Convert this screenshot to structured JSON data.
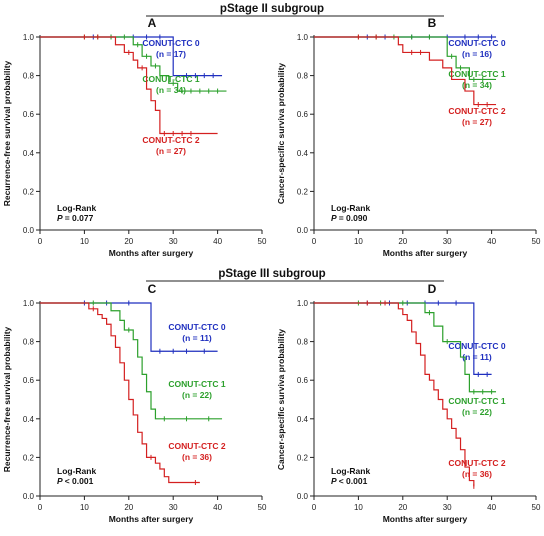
{
  "groups": [
    {
      "title": "pStage II subgroup"
    },
    {
      "title": "pStage III subgroup"
    }
  ],
  "colors": {
    "CONUT-CTC 0": "#1f2fbf",
    "CONUT-CTC 1": "#2ca02c",
    "CONUT-CTC 2": "#d42020",
    "axis": "#222222"
  },
  "chart_data": [
    {
      "panel": "A",
      "type": "line",
      "step": true,
      "xlabel": "Months after surgery",
      "ylabel": "Recurrence-free survival probability",
      "xlim": [
        0,
        50
      ],
      "ylim": [
        0,
        1.0
      ],
      "xticks": [
        "0",
        "10",
        "20",
        "30",
        "40",
        "50"
      ],
      "yticks": [
        "0.0",
        "0.2",
        "0.4",
        "0.6",
        "0.8",
        "1.0"
      ],
      "stat": {
        "label": "Log-Rank",
        "p_label": "P",
        "p_value": "= 0.077"
      },
      "series": [
        {
          "name": "CONUT-CTC 0",
          "n": "(n = 17)",
          "x": [
            0,
            30,
            41
          ],
          "y": [
            1.0,
            0.8,
            0.8
          ],
          "censor": [
            [
              12,
              1.0
            ],
            [
              16,
              1.0
            ],
            [
              21,
              1.0
            ],
            [
              24,
              1.0
            ],
            [
              27,
              1.0
            ],
            [
              33,
              0.8
            ],
            [
              35,
              0.8
            ],
            [
              37,
              0.8
            ],
            [
              39,
              0.8
            ]
          ]
        },
        {
          "name": "CONUT-CTC 1",
          "n": "(n = 34)",
          "x": [
            0,
            21,
            23,
            25,
            27,
            29,
            31,
            42
          ],
          "y": [
            1.0,
            0.96,
            0.9,
            0.85,
            0.8,
            0.76,
            0.72,
            0.72
          ],
          "censor": [
            [
              10,
              1.0
            ],
            [
              13,
              1.0
            ],
            [
              16,
              1.0
            ],
            [
              19,
              1.0
            ],
            [
              22,
              0.96
            ],
            [
              24,
              0.9
            ],
            [
              26,
              0.85
            ],
            [
              30,
              0.76
            ],
            [
              32,
              0.72
            ],
            [
              34,
              0.72
            ],
            [
              36,
              0.72
            ],
            [
              38,
              0.72
            ],
            [
              40,
              0.72
            ]
          ]
        },
        {
          "name": "CONUT-CTC 2",
          "n": "(n = 27)",
          "x": [
            0,
            17,
            19,
            21,
            22,
            24,
            25,
            26,
            27,
            40
          ],
          "y": [
            1.0,
            0.96,
            0.92,
            0.88,
            0.84,
            0.73,
            0.67,
            0.62,
            0.5,
            0.5
          ],
          "censor": [
            [
              10,
              1.0
            ],
            [
              13,
              1.0
            ],
            [
              20,
              0.92
            ],
            [
              23,
              0.84
            ],
            [
              28,
              0.5
            ],
            [
              30,
              0.5
            ],
            [
              32,
              0.5
            ],
            [
              34,
              0.5
            ]
          ]
        }
      ]
    },
    {
      "panel": "B",
      "type": "line",
      "step": true,
      "xlabel": "Months after surgery",
      "ylabel": "Cancer-specific surviva probability",
      "xlim": [
        0,
        50
      ],
      "ylim": [
        0,
        1.0
      ],
      "xticks": [
        "0",
        "10",
        "20",
        "30",
        "40",
        "50"
      ],
      "yticks": [
        "0.0",
        "0.2",
        "0.4",
        "0.6",
        "0.8",
        "1.0"
      ],
      "stat": {
        "label": "Log-Rank",
        "p_label": "P",
        "p_value": "= 0.090"
      },
      "series": [
        {
          "name": "CONUT-CTC 0",
          "n": "(n = 16)",
          "x": [
            0,
            41
          ],
          "y": [
            1.0,
            1.0
          ],
          "censor": [
            [
              12,
              1.0
            ],
            [
              16,
              1.0
            ],
            [
              22,
              1.0
            ],
            [
              26,
              1.0
            ],
            [
              30,
              1.0
            ],
            [
              34,
              1.0
            ],
            [
              37,
              1.0
            ],
            [
              40,
              1.0
            ]
          ]
        },
        {
          "name": "CONUT-CTC 1",
          "n": "(n = 34)",
          "x": [
            0,
            30,
            32,
            35,
            41
          ],
          "y": [
            1.0,
            0.9,
            0.84,
            0.78,
            0.78
          ],
          "censor": [
            [
              10,
              1.0
            ],
            [
              14,
              1.0
            ],
            [
              18,
              1.0
            ],
            [
              22,
              1.0
            ],
            [
              26,
              1.0
            ],
            [
              31,
              0.9
            ],
            [
              33,
              0.84
            ],
            [
              36,
              0.78
            ],
            [
              38,
              0.78
            ]
          ]
        },
        {
          "name": "CONUT-CTC 2",
          "n": "(n = 27)",
          "x": [
            0,
            19,
            20,
            26,
            29,
            31,
            34,
            36,
            41
          ],
          "y": [
            1.0,
            0.96,
            0.92,
            0.88,
            0.84,
            0.78,
            0.72,
            0.65,
            0.65
          ],
          "censor": [
            [
              10,
              1.0
            ],
            [
              14,
              1.0
            ],
            [
              22,
              0.92
            ],
            [
              24,
              0.92
            ],
            [
              37,
              0.65
            ],
            [
              39,
              0.65
            ]
          ]
        }
      ]
    },
    {
      "panel": "C",
      "type": "line",
      "step": true,
      "xlabel": "Months after surgery",
      "ylabel": "Recurrence-free survival probability",
      "xlim": [
        0,
        50
      ],
      "ylim": [
        0,
        1.0
      ],
      "xticks": [
        "0",
        "10",
        "20",
        "30",
        "40",
        "50"
      ],
      "yticks": [
        "0.0",
        "0.2",
        "0.4",
        "0.6",
        "0.8",
        "1.0"
      ],
      "stat": {
        "label": "Log-Rank",
        "p_label": "P",
        "p_value": "< 0.001"
      },
      "series": [
        {
          "name": "CONUT-CTC 0",
          "n": "(n = 11)",
          "x": [
            0,
            25,
            40
          ],
          "y": [
            1.0,
            0.75,
            0.75
          ],
          "censor": [
            [
              10,
              1.0
            ],
            [
              15,
              1.0
            ],
            [
              20,
              1.0
            ],
            [
              27,
              0.75
            ],
            [
              30,
              0.75
            ],
            [
              33,
              0.75
            ],
            [
              37,
              0.75
            ]
          ]
        },
        {
          "name": "CONUT-CTC 1",
          "n": "(n = 22)",
          "x": [
            0,
            16,
            18,
            19,
            21,
            22,
            23,
            24,
            25,
            26,
            41
          ],
          "y": [
            1.0,
            0.96,
            0.91,
            0.86,
            0.81,
            0.72,
            0.63,
            0.54,
            0.45,
            0.4,
            0.4
          ],
          "censor": [
            [
              12,
              1.0
            ],
            [
              20,
              0.86
            ],
            [
              28,
              0.4
            ],
            [
              33,
              0.4
            ],
            [
              38,
              0.4
            ]
          ]
        },
        {
          "name": "CONUT-CTC 2",
          "n": "(n = 36)",
          "x": [
            0,
            11,
            13,
            14,
            15,
            16,
            17,
            18,
            19,
            20,
            21,
            22,
            23,
            24,
            26,
            27,
            28,
            29,
            36
          ],
          "y": [
            1.0,
            0.97,
            0.94,
            0.92,
            0.89,
            0.83,
            0.77,
            0.69,
            0.6,
            0.5,
            0.42,
            0.33,
            0.27,
            0.2,
            0.17,
            0.14,
            0.1,
            0.07,
            0.07
          ],
          "censor": [
            [
              12,
              0.97
            ],
            [
              25,
              0.2
            ],
            [
              35,
              0.07
            ]
          ]
        }
      ]
    },
    {
      "panel": "D",
      "type": "line",
      "step": true,
      "xlabel": "Months after surgery",
      "ylabel": "Cancer-specific surviva probability",
      "xlim": [
        0,
        50
      ],
      "ylim": [
        0,
        1.0
      ],
      "xticks": [
        "0",
        "10",
        "20",
        "30",
        "40",
        "50"
      ],
      "yticks": [
        "0.0",
        "0.2",
        "0.4",
        "0.6",
        "0.8",
        "1.0"
      ],
      "stat": {
        "label": "Log-Rank",
        "p_label": "P",
        "p_value": "< 0.001"
      },
      "series": [
        {
          "name": "CONUT-CTC 0",
          "n": "(n = 11)",
          "x": [
            0,
            36,
            40
          ],
          "y": [
            1.0,
            0.63,
            0.63
          ],
          "censor": [
            [
              12,
              1.0
            ],
            [
              17,
              1.0
            ],
            [
              21,
              1.0
            ],
            [
              25,
              1.0
            ],
            [
              28,
              1.0
            ],
            [
              32,
              1.0
            ],
            [
              37,
              0.63
            ],
            [
              39,
              0.63
            ]
          ]
        },
        {
          "name": "CONUT-CTC 1",
          "n": "(n = 22)",
          "x": [
            0,
            25,
            27,
            29,
            33,
            34,
            35,
            41
          ],
          "y": [
            1.0,
            0.95,
            0.88,
            0.8,
            0.72,
            0.63,
            0.54,
            0.54
          ],
          "censor": [
            [
              10,
              1.0
            ],
            [
              15,
              1.0
            ],
            [
              20,
              1.0
            ],
            [
              26,
              0.95
            ],
            [
              30,
              0.8
            ],
            [
              36,
              0.54
            ],
            [
              38,
              0.54
            ],
            [
              40,
              0.54
            ]
          ]
        },
        {
          "name": "CONUT-CTC 2",
          "n": "(n = 36)",
          "x": [
            0,
            19,
            20,
            21,
            22,
            23,
            24,
            25,
            26,
            27,
            28,
            29,
            30,
            31,
            32,
            33,
            34,
            35,
            36
          ],
          "y": [
            1.0,
            0.97,
            0.94,
            0.91,
            0.85,
            0.79,
            0.73,
            0.63,
            0.6,
            0.55,
            0.5,
            0.45,
            0.4,
            0.35,
            0.3,
            0.24,
            0.15,
            0.08,
            0.05
          ],
          "censor": [
            [
              12,
              1.0
            ],
            [
              16,
              1.0
            ],
            [
              36,
              0.05
            ]
          ]
        }
      ]
    }
  ]
}
